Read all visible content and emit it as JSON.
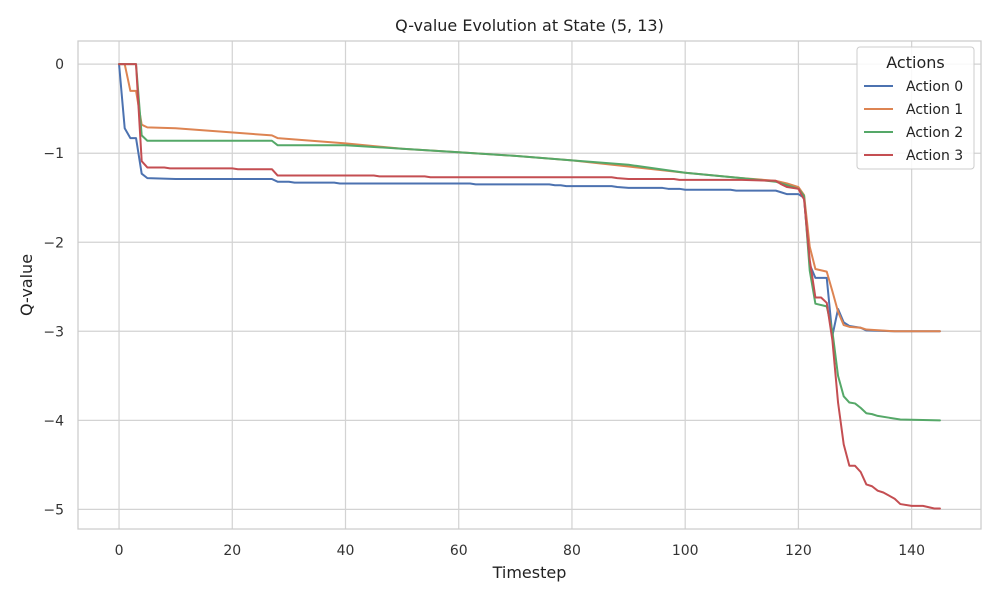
{
  "chart_data": {
    "type": "line",
    "title": "Q-value Evolution at State (5, 13)",
    "xlabel": "Timestep",
    "ylabel": "Q-value",
    "xlim": [
      -7.25,
      152.25
    ],
    "ylim": [
      -5.22,
      0.26
    ],
    "xticks": [
      0,
      20,
      40,
      60,
      80,
      100,
      120,
      140
    ],
    "xtick_labels": [
      "0",
      "20",
      "40",
      "60",
      "80",
      "100",
      "120",
      "140"
    ],
    "yticks": [
      0,
      -1,
      -2,
      -3,
      -4,
      -5
    ],
    "ytick_labels": [
      "0",
      "−1",
      "−2",
      "−3",
      "−4",
      "−5"
    ],
    "grid": true,
    "legend_title": "Actions",
    "legend_position": "top-right",
    "series": [
      {
        "name": "Action 0",
        "color": "#4c72b0",
        "points": [
          [
            0,
            0
          ],
          [
            1,
            -0.72
          ],
          [
            2,
            -0.83
          ],
          [
            3,
            -0.83
          ],
          [
            4,
            -1.23
          ],
          [
            5,
            -1.28
          ],
          [
            10,
            -1.29
          ],
          [
            27,
            -1.29
          ],
          [
            28,
            -1.32
          ],
          [
            30,
            -1.32
          ],
          [
            31,
            -1.33
          ],
          [
            38,
            -1.33
          ],
          [
            39,
            -1.34
          ],
          [
            62,
            -1.34
          ],
          [
            63,
            -1.35
          ],
          [
            76,
            -1.35
          ],
          [
            77,
            -1.36
          ],
          [
            78,
            -1.36
          ],
          [
            79,
            -1.37
          ],
          [
            87,
            -1.37
          ],
          [
            88,
            -1.38
          ],
          [
            90,
            -1.39
          ],
          [
            96,
            -1.39
          ],
          [
            97,
            -1.4
          ],
          [
            99,
            -1.4
          ],
          [
            100,
            -1.41
          ],
          [
            108,
            -1.41
          ],
          [
            109,
            -1.42
          ],
          [
            116,
            -1.42
          ],
          [
            117,
            -1.44
          ],
          [
            118,
            -1.46
          ],
          [
            120,
            -1.46
          ],
          [
            121,
            -1.5
          ],
          [
            122,
            -2.25
          ],
          [
            123,
            -2.4
          ],
          [
            125,
            -2.4
          ],
          [
            126,
            -3.05
          ],
          [
            127,
            -2.75
          ],
          [
            128,
            -2.9
          ],
          [
            129,
            -2.94
          ],
          [
            131,
            -2.96
          ],
          [
            132,
            -2.99
          ],
          [
            137,
            -3.0
          ],
          [
            145,
            -3.0
          ]
        ]
      },
      {
        "name": "Action 1",
        "color": "#dd8452",
        "points": [
          [
            0,
            0
          ],
          [
            1,
            0
          ],
          [
            2,
            -0.3
          ],
          [
            3,
            -0.3
          ],
          [
            4,
            -0.68
          ],
          [
            5,
            -0.71
          ],
          [
            10,
            -0.72
          ],
          [
            27,
            -0.8
          ],
          [
            28,
            -0.83
          ],
          [
            32,
            -0.85
          ],
          [
            40,
            -0.89
          ],
          [
            50,
            -0.95
          ],
          [
            60,
            -0.99
          ],
          [
            70,
            -1.03
          ],
          [
            80,
            -1.08
          ],
          [
            90,
            -1.15
          ],
          [
            100,
            -1.22
          ],
          [
            110,
            -1.28
          ],
          [
            116,
            -1.31
          ],
          [
            118,
            -1.34
          ],
          [
            120,
            -1.38
          ],
          [
            121,
            -1.47
          ],
          [
            122,
            -2.05
          ],
          [
            123,
            -2.3
          ],
          [
            125,
            -2.33
          ],
          [
            126,
            -2.55
          ],
          [
            127,
            -2.78
          ],
          [
            128,
            -2.93
          ],
          [
            129,
            -2.95
          ],
          [
            131,
            -2.96
          ],
          [
            132,
            -2.98
          ],
          [
            137,
            -3.0
          ],
          [
            145,
            -3.0
          ]
        ]
      },
      {
        "name": "Action 2",
        "color": "#55a868",
        "points": [
          [
            0,
            0
          ],
          [
            1,
            0
          ],
          [
            2,
            0
          ],
          [
            3,
            0
          ],
          [
            4,
            -0.8
          ],
          [
            5,
            -0.86
          ],
          [
            27,
            -0.86
          ],
          [
            28,
            -0.91
          ],
          [
            40,
            -0.91
          ],
          [
            50,
            -0.95
          ],
          [
            60,
            -0.99
          ],
          [
            70,
            -1.03
          ],
          [
            80,
            -1.08
          ],
          [
            90,
            -1.13
          ],
          [
            100,
            -1.22
          ],
          [
            110,
            -1.28
          ],
          [
            116,
            -1.32
          ],
          [
            118,
            -1.36
          ],
          [
            120,
            -1.4
          ],
          [
            121,
            -1.48
          ],
          [
            122,
            -2.32
          ],
          [
            123,
            -2.69
          ],
          [
            125,
            -2.72
          ],
          [
            126,
            -3.0
          ],
          [
            127,
            -3.5
          ],
          [
            128,
            -3.73
          ],
          [
            129,
            -3.8
          ],
          [
            130,
            -3.81
          ],
          [
            131,
            -3.86
          ],
          [
            132,
            -3.92
          ],
          [
            133,
            -3.93
          ],
          [
            134,
            -3.95
          ],
          [
            136,
            -3.97
          ],
          [
            138,
            -3.99
          ],
          [
            145,
            -4.0
          ]
        ]
      },
      {
        "name": "Action 3",
        "color": "#c44e52",
        "points": [
          [
            0,
            0
          ],
          [
            1,
            0
          ],
          [
            2,
            0
          ],
          [
            3,
            0
          ],
          [
            4,
            -1.09
          ],
          [
            5,
            -1.16
          ],
          [
            8,
            -1.16
          ],
          [
            9,
            -1.17
          ],
          [
            20,
            -1.17
          ],
          [
            21,
            -1.18
          ],
          [
            27,
            -1.18
          ],
          [
            28,
            -1.25
          ],
          [
            45,
            -1.25
          ],
          [
            46,
            -1.26
          ],
          [
            54,
            -1.26
          ],
          [
            55,
            -1.27
          ],
          [
            87,
            -1.27
          ],
          [
            88,
            -1.28
          ],
          [
            90,
            -1.29
          ],
          [
            98,
            -1.29
          ],
          [
            99,
            -1.3
          ],
          [
            110,
            -1.3
          ],
          [
            116,
            -1.31
          ],
          [
            117,
            -1.35
          ],
          [
            118,
            -1.38
          ],
          [
            120,
            -1.4
          ],
          [
            121,
            -1.52
          ],
          [
            122,
            -2.2
          ],
          [
            123,
            -2.62
          ],
          [
            124,
            -2.62
          ],
          [
            125,
            -2.68
          ],
          [
            126,
            -3.1
          ],
          [
            127,
            -3.8
          ],
          [
            128,
            -4.27
          ],
          [
            129,
            -4.51
          ],
          [
            130,
            -4.51
          ],
          [
            131,
            -4.58
          ],
          [
            132,
            -4.72
          ],
          [
            133,
            -4.74
          ],
          [
            134,
            -4.79
          ],
          [
            135,
            -4.81
          ],
          [
            137,
            -4.88
          ],
          [
            138,
            -4.94
          ],
          [
            140,
            -4.96
          ],
          [
            142,
            -4.96
          ],
          [
            144,
            -4.99
          ],
          [
            145,
            -4.99
          ]
        ]
      }
    ]
  }
}
